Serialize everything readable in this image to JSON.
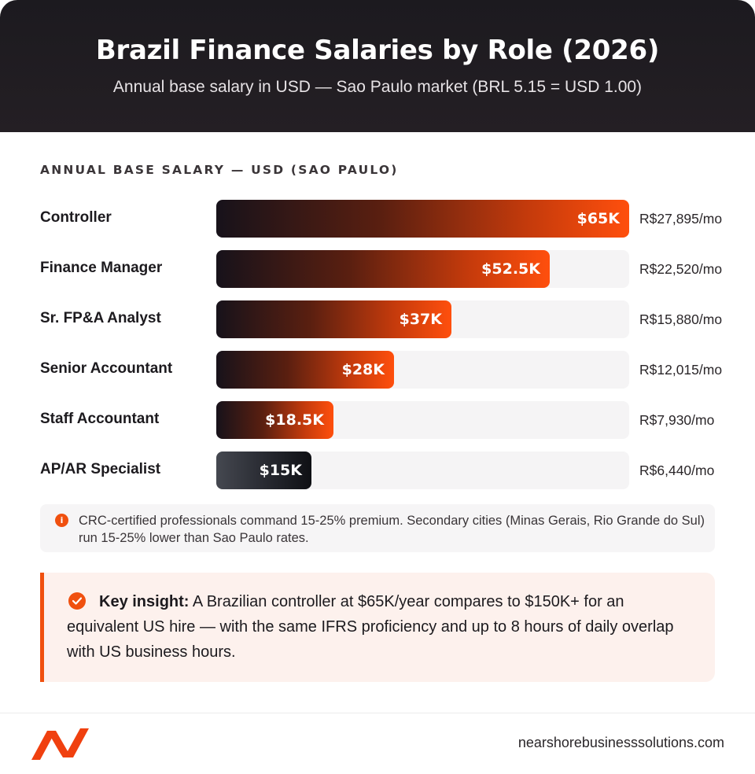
{
  "header": {
    "title": "Brazil Finance Salaries by Role (2026)",
    "subtitle": "Annual base salary in USD — Sao Paulo market (BRL 5.15 = USD 1.00)"
  },
  "chart_data": {
    "type": "bar",
    "orientation": "horizontal",
    "section_label": "ANNUAL BASE SALARY — USD (SAO PAULO)",
    "categories": [
      "Controller",
      "Finance Manager",
      "Sr. FP&A Analyst",
      "Senior Accountant",
      "Staff Accountant",
      "AP/AR Specialist"
    ],
    "values": [
      65,
      52.5,
      37,
      28,
      18.5,
      15
    ],
    "unit": "USD thousands",
    "xlim": [
      0,
      65
    ],
    "value_labels": [
      "$65K",
      "$52.5K",
      "$37K",
      "$28K",
      "$18.5K",
      "$15K"
    ],
    "monthly_brl": [
      "R$27,895/mo",
      "R$22,520/mo",
      "R$15,880/mo",
      "R$12,015/mo",
      "R$7,930/mo",
      "R$6,440/mo"
    ],
    "colors": {
      "bar_start": "#17121a",
      "bar_end": "#ff4f0d",
      "bar_gray": "#23252c",
      "track": "#f5f4f5"
    }
  },
  "note": {
    "icon": "info-icon",
    "text": "CRC-certified professionals command 15-25% premium. Secondary cities (Minas Gerais, Rio Grande do Sul) run 15-25% lower than Sao Paulo rates."
  },
  "insight": {
    "icon": "check-circle-icon",
    "label": "Key insight:",
    "text": " A Brazilian controller at $65K/year compares to $150K+ for an equivalent US hire — with the same IFRS proficiency and up to 8 hours of daily overlap with US business hours."
  },
  "footer": {
    "logo": "nearshore-logo-icon",
    "website": "nearshorebusinesssolutions.com"
  },
  "colors": {
    "accent": "#f0500f",
    "header_bg": "#1c1a1f"
  }
}
